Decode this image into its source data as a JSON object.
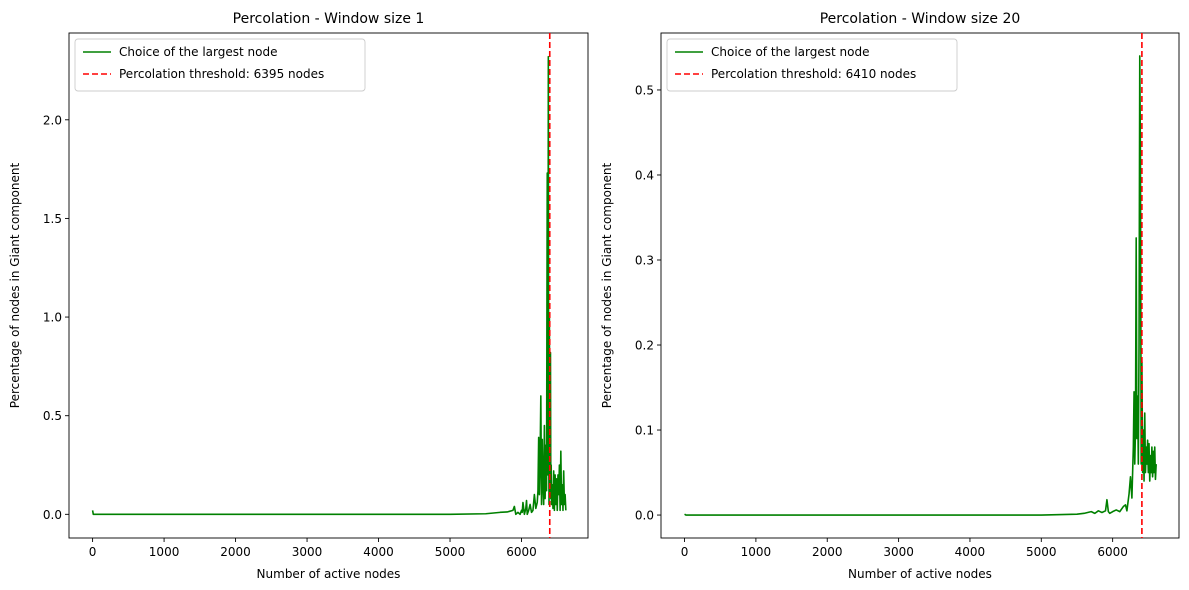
{
  "chart_data": [
    {
      "type": "line",
      "title": "Percolation - Window size 1",
      "xlabel": "Number of active nodes",
      "ylabel": "Percentage of nodes in Giant component",
      "xlim": [
        -330,
        6930
      ],
      "ylim": [
        -0.12,
        2.44
      ],
      "xticks": [
        0,
        1000,
        2000,
        3000,
        4000,
        5000,
        6000
      ],
      "xtick_labels": [
        "0",
        "1000",
        "2000",
        "3000",
        "4000",
        "5000",
        "6000"
      ],
      "yticks": [
        0.0,
        0.5,
        1.0,
        1.5,
        2.0
      ],
      "ytick_labels": [
        "0.0",
        "0.5",
        "1.0",
        "1.5",
        "2.0"
      ],
      "legend": {
        "position": "top-left",
        "series_label": "Choice of the largest node",
        "threshold_label": "Percolation threshold: 6395 nodes"
      },
      "threshold": 6395,
      "series": [
        {
          "name": "Choice of the largest node",
          "color": "#008000",
          "x": [
            0,
            10,
            20,
            1000,
            2000,
            3000,
            4000,
            5000,
            5500,
            5700,
            5800,
            5880,
            5900,
            5920,
            5950,
            5980,
            6000,
            6010,
            6020,
            6040,
            6060,
            6070,
            6080,
            6100,
            6120,
            6140,
            6160,
            6180,
            6200,
            6220,
            6230,
            6240,
            6250,
            6260,
            6270,
            6280,
            6290,
            6300,
            6310,
            6320,
            6330,
            6340,
            6350,
            6360,
            6370,
            6375,
            6380,
            6385,
            6390,
            6395,
            6400,
            6405,
            6410,
            6415,
            6420,
            6430,
            6440,
            6450,
            6460,
            6470,
            6480,
            6490,
            6500,
            6510,
            6520,
            6530,
            6540,
            6550,
            6560,
            6570,
            6580,
            6590,
            6600,
            6610,
            6620
          ],
          "y": [
            0.02,
            0.0,
            0.0,
            0.0,
            0.0,
            0.0,
            0.0,
            0.0,
            0.003,
            0.01,
            0.012,
            0.02,
            0.04,
            0.0,
            0.01,
            0.0,
            0.02,
            0.01,
            0.06,
            0.0,
            0.03,
            0.07,
            0.0,
            0.02,
            0.05,
            0.01,
            0.02,
            0.1,
            0.03,
            0.06,
            0.12,
            0.39,
            0.1,
            0.28,
            0.6,
            0.05,
            0.38,
            0.15,
            0.05,
            0.45,
            0.08,
            0.35,
            0.12,
            1.73,
            0.2,
            2.32,
            0.4,
            0.05,
            1.0,
            0.1,
            0.3,
            0.82,
            0.08,
            0.25,
            0.05,
            0.15,
            0.03,
            0.22,
            0.02,
            0.2,
            0.05,
            0.18,
            0.02,
            0.2,
            0.1,
            0.25,
            0.02,
            0.32,
            0.05,
            0.15,
            0.02,
            0.22,
            0.05,
            0.1,
            0.02
          ]
        }
      ]
    },
    {
      "type": "line",
      "title": "Percolation - Window size 20",
      "xlabel": "Number of active nodes",
      "ylabel": "Percentage of nodes in Giant component",
      "xlim": [
        -330,
        6930
      ],
      "ylim": [
        -0.027,
        0.567
      ],
      "xticks": [
        0,
        1000,
        2000,
        3000,
        4000,
        5000,
        6000
      ],
      "xtick_labels": [
        "0",
        "1000",
        "2000",
        "3000",
        "4000",
        "5000",
        "6000"
      ],
      "yticks": [
        0.0,
        0.1,
        0.2,
        0.3,
        0.4,
        0.5
      ],
      "ytick_labels": [
        "0.0",
        "0.1",
        "0.2",
        "0.3",
        "0.4",
        "0.5"
      ],
      "legend": {
        "position": "top-left",
        "series_label": "Choice of the largest node",
        "threshold_label": "Percolation threshold: 6410 nodes"
      },
      "threshold": 6410,
      "series": [
        {
          "name": "Choice of the largest node",
          "color": "#008000",
          "x": [
            0,
            20,
            1000,
            2000,
            3000,
            4000,
            5000,
            5500,
            5600,
            5650,
            5700,
            5750,
            5800,
            5850,
            5900,
            5920,
            5940,
            5960,
            6000,
            6050,
            6100,
            6150,
            6180,
            6200,
            6230,
            6250,
            6270,
            6290,
            6300,
            6310,
            6320,
            6330,
            6340,
            6350,
            6360,
            6370,
            6380,
            6390,
            6400,
            6410,
            6420,
            6430,
            6440,
            6450,
            6460,
            6470,
            6480,
            6490,
            6500,
            6510,
            6520,
            6530,
            6540,
            6550,
            6560,
            6570,
            6580,
            6590,
            6600,
            6610
          ],
          "y": [
            0.001,
            0.0,
            0.0,
            0.0,
            0.0,
            0.0,
            0.0,
            0.001,
            0.002,
            0.003,
            0.004,
            0.002,
            0.005,
            0.003,
            0.005,
            0.018,
            0.004,
            0.002,
            0.004,
            0.006,
            0.004,
            0.01,
            0.012,
            0.005,
            0.025,
            0.045,
            0.02,
            0.08,
            0.145,
            0.06,
            0.1,
            0.326,
            0.09,
            0.14,
            0.06,
            0.2,
            0.54,
            0.42,
            0.06,
            0.18,
            0.05,
            0.1,
            0.04,
            0.12,
            0.05,
            0.08,
            0.06,
            0.088,
            0.05,
            0.084,
            0.04,
            0.07,
            0.05,
            0.08,
            0.045,
            0.075,
            0.05,
            0.08,
            0.042,
            0.06
          ]
        }
      ]
    }
  ]
}
